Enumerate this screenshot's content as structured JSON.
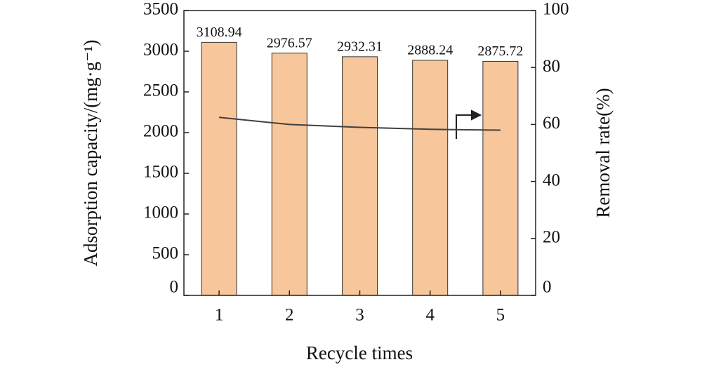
{
  "chart_data": {
    "type": "bar_line",
    "x_label": "Recycle times",
    "y_label": "Adsorption capacity/(mg·g⁻¹)",
    "y2_label": "Removal rate(%)",
    "categories": [
      "1",
      "2",
      "3",
      "4",
      "5"
    ],
    "series": [
      {
        "type": "bar",
        "color": "#f8c69b",
        "values": [
          3108.94,
          2976.57,
          2932.31,
          2888.24,
          2875.72
        ]
      },
      {
        "type": "line",
        "axis": "y2",
        "color": "#404040",
        "values": [
          62.5,
          60,
          59,
          58.3,
          58
        ]
      }
    ],
    "ylim": [
      0,
      3500
    ],
    "yticks": [
      0,
      500,
      1000,
      1500,
      2000,
      2500,
      3000,
      3500
    ],
    "y2lim": [
      0,
      100
    ],
    "y2ticks": [
      0,
      20,
      40,
      60,
      80,
      100
    ]
  }
}
